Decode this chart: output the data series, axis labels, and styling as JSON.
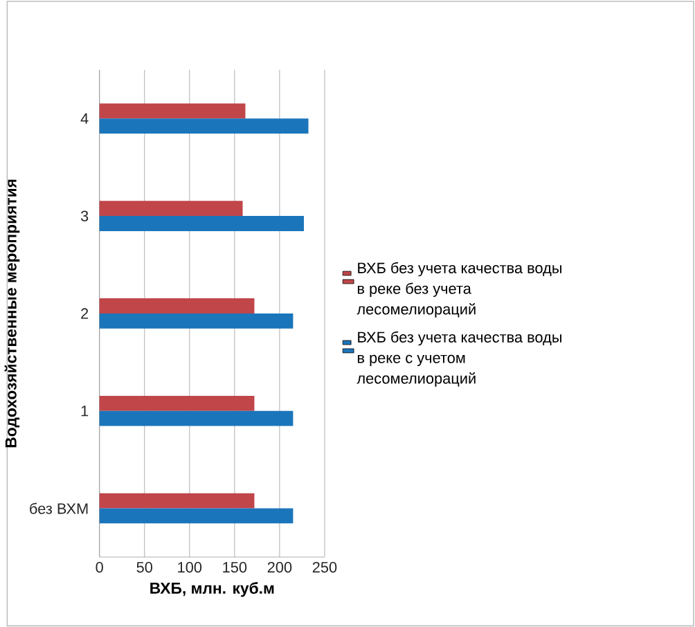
{
  "chart_data": {
    "type": "bar",
    "orientation": "horizontal",
    "xlabel": "ВХБ, млн. куб.м",
    "ylabel": "Водохозяйственные мероприятия",
    "categories": [
      "4",
      "3",
      "2",
      "1",
      "без ВХМ"
    ],
    "series": [
      {
        "name": "ВХБ без учета качества воды в реке без учета лесомелиораций",
        "color": "#c0464a",
        "values": [
          162,
          159,
          172,
          172,
          172
        ]
      },
      {
        "name": "ВХБ без учета качества воды в реке с учетом лесомелиораций",
        "color": "#1b75bb",
        "values": [
          232,
          227,
          215,
          215,
          215
        ]
      }
    ],
    "xlim": [
      0,
      250
    ],
    "xticks": [
      0,
      50,
      100,
      150,
      200,
      250
    ],
    "grid": "x",
    "legend": "right"
  }
}
